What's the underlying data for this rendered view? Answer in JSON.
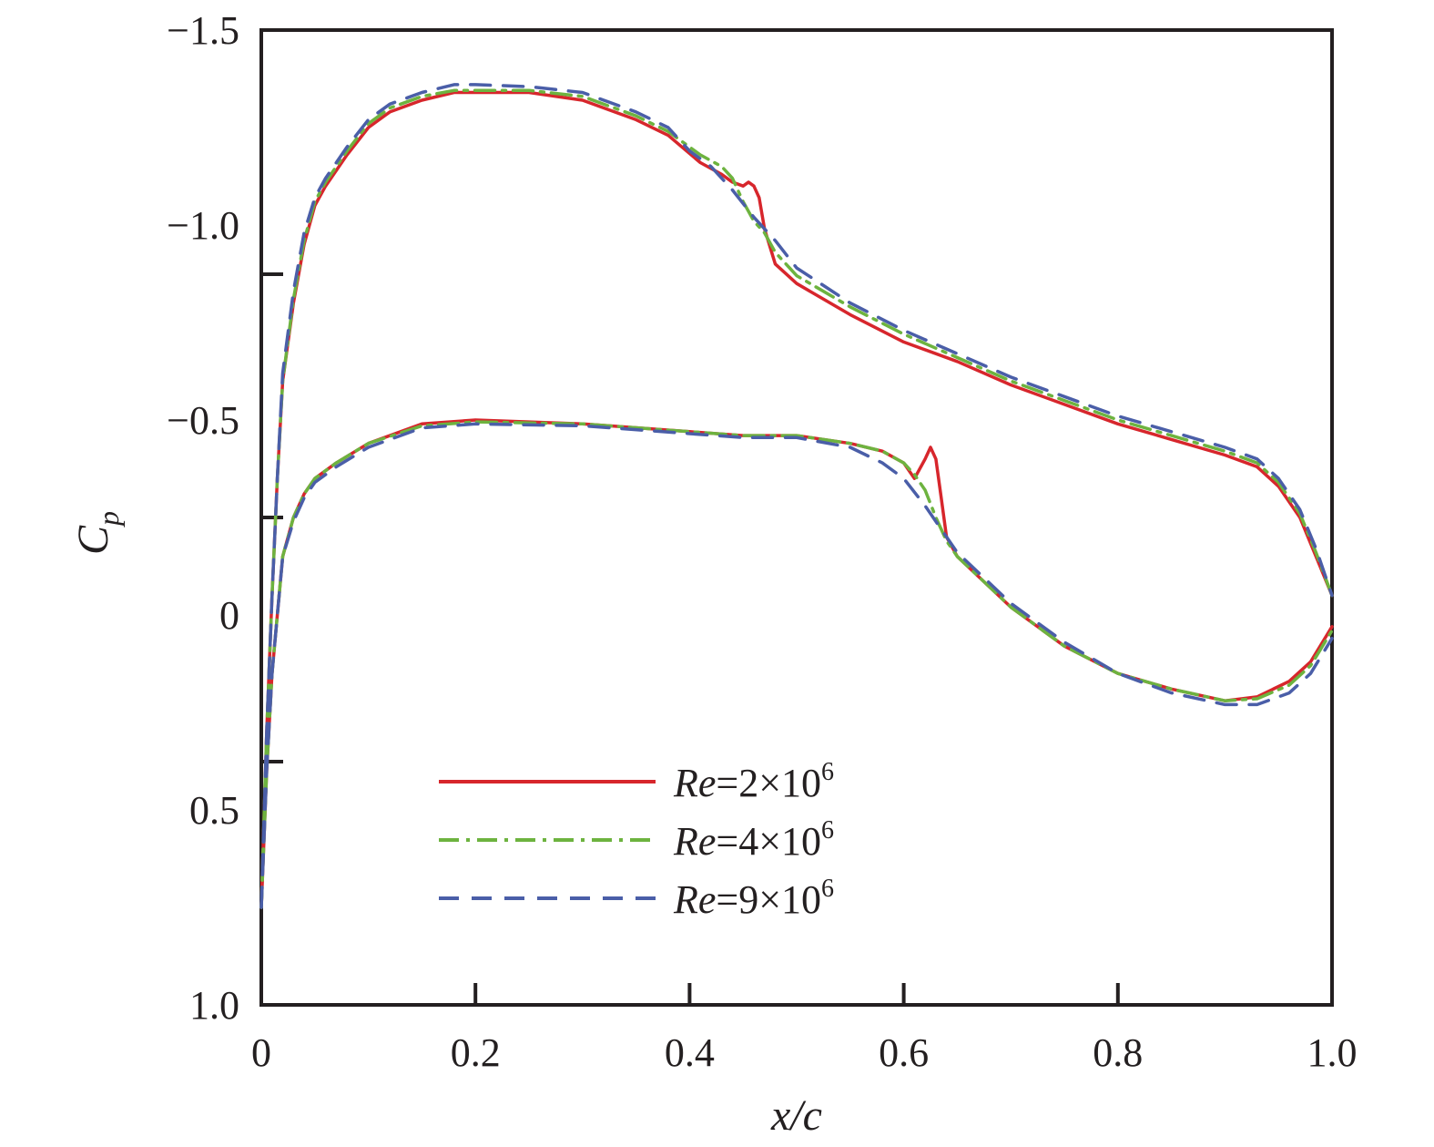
{
  "chart_data": {
    "type": "line",
    "xlabel": "x/c",
    "ylabel": "C",
    "ylabel_sub": "p",
    "xlim": [
      0,
      1.0
    ],
    "ylim": [
      1.0,
      -1.5
    ],
    "y_inverted": true,
    "xticks": [
      0,
      0.2,
      0.4,
      0.6,
      0.8,
      1.0
    ],
    "xtick_labels": [
      "0",
      "0.2",
      "0.4",
      "0.6",
      "0.8",
      "1.0"
    ],
    "yticks": [
      -1.5,
      -1.0,
      -0.5,
      0,
      0.5,
      1.0
    ],
    "ytick_labels": [
      "−1.5",
      "−1.0",
      "−0.5",
      "0",
      "0.5",
      "1.0"
    ],
    "grid": false,
    "legend_position": "bottom-center",
    "series": [
      {
        "name": "Re=2×10^6",
        "label_italic": "Re",
        "label_rest": "=2×10",
        "label_sup": "6",
        "color": "#d7262c",
        "dash": "solid",
        "upper": {
          "x": [
            0.0,
            0.005,
            0.01,
            0.015,
            0.02,
            0.03,
            0.04,
            0.05,
            0.06,
            0.08,
            0.1,
            0.12,
            0.15,
            0.18,
            0.2,
            0.25,
            0.3,
            0.35,
            0.38,
            0.41,
            0.43,
            0.44,
            0.45,
            0.455,
            0.46,
            0.465,
            0.47,
            0.48,
            0.5,
            0.55,
            0.6,
            0.65,
            0.7,
            0.75,
            0.8,
            0.85,
            0.9,
            0.93,
            0.95,
            0.97,
            0.985,
            1.0
          ],
          "y": [
            0.75,
            0.3,
            -0.05,
            -0.35,
            -0.6,
            -0.8,
            -0.95,
            -1.05,
            -1.1,
            -1.18,
            -1.25,
            -1.29,
            -1.32,
            -1.34,
            -1.34,
            -1.34,
            -1.32,
            -1.27,
            -1.23,
            -1.16,
            -1.13,
            -1.11,
            -1.1,
            -1.11,
            -1.1,
            -1.07,
            -0.99,
            -0.9,
            -0.85,
            -0.77,
            -0.7,
            -0.65,
            -0.59,
            -0.54,
            -0.49,
            -0.45,
            -0.41,
            -0.38,
            -0.33,
            -0.25,
            -0.15,
            -0.05
          ]
        },
        "lower": {
          "x": [
            0.0,
            0.005,
            0.01,
            0.015,
            0.02,
            0.03,
            0.04,
            0.05,
            0.07,
            0.1,
            0.15,
            0.2,
            0.3,
            0.4,
            0.45,
            0.5,
            0.55,
            0.58,
            0.6,
            0.61,
            0.62,
            0.625,
            0.63,
            0.635,
            0.64,
            0.65,
            0.7,
            0.75,
            0.8,
            0.85,
            0.9,
            0.93,
            0.96,
            0.98,
            1.0
          ],
          "y": [
            0.75,
            0.4,
            0.15,
            0.0,
            -0.15,
            -0.25,
            -0.31,
            -0.35,
            -0.39,
            -0.44,
            -0.49,
            -0.5,
            -0.49,
            -0.47,
            -0.46,
            -0.46,
            -0.44,
            -0.42,
            -0.39,
            -0.35,
            -0.4,
            -0.43,
            -0.4,
            -0.3,
            -0.2,
            -0.15,
            -0.02,
            0.08,
            0.15,
            0.19,
            0.22,
            0.21,
            0.17,
            0.12,
            0.03
          ]
        }
      },
      {
        "name": "Re=4×10^6",
        "label_italic": "Re",
        "label_rest": "=4×10",
        "label_sup": "6",
        "color": "#6db33f",
        "dash": "dashdot",
        "upper": {
          "x": [
            0.0,
            0.005,
            0.01,
            0.015,
            0.02,
            0.03,
            0.04,
            0.05,
            0.06,
            0.08,
            0.1,
            0.12,
            0.15,
            0.18,
            0.2,
            0.25,
            0.3,
            0.35,
            0.38,
            0.41,
            0.43,
            0.44,
            0.45,
            0.46,
            0.47,
            0.48,
            0.5,
            0.55,
            0.6,
            0.65,
            0.7,
            0.75,
            0.8,
            0.85,
            0.9,
            0.93,
            0.95,
            0.97,
            0.985,
            1.0
          ],
          "y": [
            0.75,
            0.3,
            -0.05,
            -0.35,
            -0.6,
            -0.81,
            -0.96,
            -1.06,
            -1.11,
            -1.19,
            -1.26,
            -1.3,
            -1.33,
            -1.345,
            -1.345,
            -1.345,
            -1.33,
            -1.28,
            -1.24,
            -1.18,
            -1.15,
            -1.12,
            -1.06,
            -1.01,
            -0.98,
            -0.93,
            -0.87,
            -0.79,
            -0.72,
            -0.66,
            -0.6,
            -0.55,
            -0.5,
            -0.46,
            -0.42,
            -0.39,
            -0.34,
            -0.26,
            -0.16,
            -0.05
          ]
        },
        "lower": {
          "x": [
            0.0,
            0.005,
            0.01,
            0.015,
            0.02,
            0.03,
            0.04,
            0.05,
            0.07,
            0.1,
            0.15,
            0.2,
            0.3,
            0.4,
            0.45,
            0.5,
            0.55,
            0.58,
            0.6,
            0.61,
            0.62,
            0.63,
            0.64,
            0.65,
            0.7,
            0.75,
            0.8,
            0.85,
            0.9,
            0.93,
            0.96,
            0.98,
            1.0
          ],
          "y": [
            0.75,
            0.4,
            0.15,
            0.0,
            -0.15,
            -0.25,
            -0.31,
            -0.35,
            -0.39,
            -0.44,
            -0.485,
            -0.495,
            -0.49,
            -0.47,
            -0.46,
            -0.46,
            -0.44,
            -0.42,
            -0.39,
            -0.36,
            -0.32,
            -0.25,
            -0.19,
            -0.15,
            -0.02,
            0.08,
            0.15,
            0.19,
            0.22,
            0.215,
            0.18,
            0.13,
            0.04
          ]
        }
      },
      {
        "name": "Re=9×10^6",
        "label_italic": "Re",
        "label_rest": "=9×10",
        "label_sup": "6",
        "color": "#4a5ea8",
        "dash": "dashed",
        "upper": {
          "x": [
            0.0,
            0.005,
            0.01,
            0.015,
            0.02,
            0.03,
            0.04,
            0.05,
            0.06,
            0.08,
            0.1,
            0.12,
            0.15,
            0.18,
            0.2,
            0.25,
            0.3,
            0.35,
            0.38,
            0.4,
            0.42,
            0.44,
            0.46,
            0.48,
            0.5,
            0.55,
            0.6,
            0.65,
            0.7,
            0.75,
            0.8,
            0.85,
            0.9,
            0.93,
            0.95,
            0.97,
            0.985,
            1.0
          ],
          "y": [
            0.75,
            0.3,
            -0.05,
            -0.35,
            -0.62,
            -0.83,
            -0.98,
            -1.07,
            -1.12,
            -1.2,
            -1.27,
            -1.31,
            -1.34,
            -1.36,
            -1.36,
            -1.355,
            -1.34,
            -1.29,
            -1.25,
            -1.19,
            -1.15,
            -1.09,
            -1.02,
            -0.96,
            -0.89,
            -0.8,
            -0.73,
            -0.67,
            -0.61,
            -0.56,
            -0.51,
            -0.47,
            -0.43,
            -0.4,
            -0.35,
            -0.27,
            -0.17,
            -0.05
          ]
        },
        "lower": {
          "x": [
            0.0,
            0.005,
            0.01,
            0.015,
            0.02,
            0.03,
            0.04,
            0.05,
            0.07,
            0.1,
            0.15,
            0.2,
            0.3,
            0.4,
            0.45,
            0.5,
            0.55,
            0.58,
            0.6,
            0.62,
            0.64,
            0.65,
            0.7,
            0.75,
            0.8,
            0.85,
            0.9,
            0.93,
            0.96,
            0.98,
            1.0
          ],
          "y": [
            0.75,
            0.4,
            0.15,
            0.0,
            -0.15,
            -0.24,
            -0.3,
            -0.34,
            -0.38,
            -0.43,
            -0.48,
            -0.49,
            -0.485,
            -0.465,
            -0.455,
            -0.455,
            -0.43,
            -0.39,
            -0.35,
            -0.28,
            -0.2,
            -0.16,
            -0.03,
            0.07,
            0.15,
            0.2,
            0.23,
            0.23,
            0.2,
            0.15,
            0.06
          ]
        }
      }
    ]
  }
}
